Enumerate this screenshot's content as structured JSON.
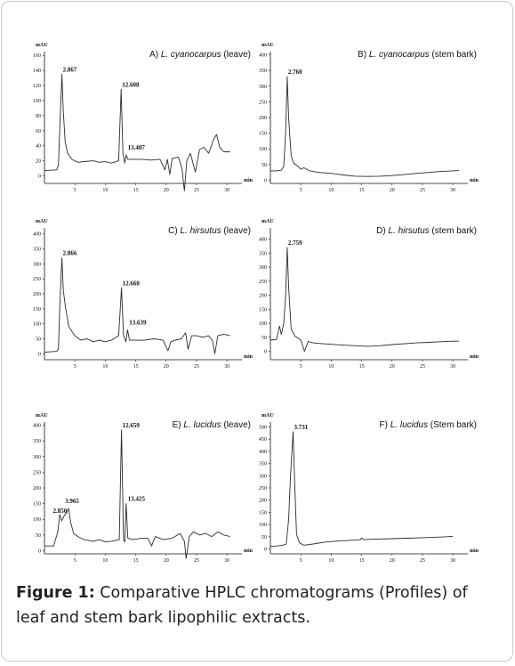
{
  "caption": {
    "label": "Figure 1:",
    "text": "Comparative HPLC chromatograms (Profiles) of leaf and stem bark lipophilic extracts."
  },
  "colors": {
    "trace": "#2b2b2b",
    "axis": "#111111",
    "border": "#c9c9c9"
  },
  "chart_data": [
    {
      "type": "line",
      "id": "A",
      "title_prefix": "A) ",
      "title_species": "L. cyanocarpus",
      "title_suffix": " (leave)",
      "ylabel": "mAU",
      "xlabel": "min",
      "xlim": [
        0,
        31
      ],
      "ylim": [
        -10,
        165
      ],
      "xticks": [
        5,
        10,
        15,
        20,
        25,
        30
      ],
      "yticks": [
        0,
        20,
        40,
        60,
        80,
        100,
        120,
        140,
        160
      ],
      "peaks": [
        {
          "label": "2.867",
          "x": 2.867,
          "y": 135
        },
        {
          "label": "12.608",
          "x": 12.608,
          "y": 115
        },
        {
          "label": "13.407",
          "x": 13.407,
          "y": 28
        }
      ],
      "x": [
        0,
        2,
        2.3,
        2.5,
        2.867,
        3.1,
        3.4,
        3.8,
        4.5,
        5.5,
        6.5,
        8,
        9,
        10,
        11,
        12.2,
        12.608,
        12.9,
        13.2,
        13.407,
        13.7,
        14.5,
        16,
        17.5,
        19,
        19.8,
        20.2,
        20.6,
        21,
        22,
        22.6,
        23,
        23.4,
        24,
        24.8,
        25.5,
        26.2,
        27,
        27.8,
        28.3,
        28.8,
        29.5,
        30.5
      ],
      "y": [
        7,
        8,
        14,
        60,
        135,
        85,
        45,
        30,
        22,
        18,
        19,
        20,
        18,
        19,
        17,
        20,
        115,
        30,
        17,
        28,
        22,
        22,
        22,
        21,
        22,
        8,
        22,
        2,
        23,
        25,
        10,
        -20,
        20,
        30,
        5,
        35,
        38,
        30,
        48,
        55,
        38,
        32,
        32
      ]
    },
    {
      "type": "line",
      "id": "B",
      "title_prefix": "B) ",
      "title_species": "L. cyanocarpus",
      "title_suffix": " (stem bark)",
      "ylabel": "mAU",
      "xlabel": "min",
      "xlim": [
        0,
        31
      ],
      "ylim": [
        -10,
        410
      ],
      "xticks": [
        5,
        10,
        15,
        20,
        25,
        30
      ],
      "yticks": [
        0,
        50,
        100,
        150,
        200,
        250,
        300,
        350,
        400
      ],
      "peaks": [
        {
          "label": "2.760",
          "x": 2.76,
          "y": 330
        }
      ],
      "x": [
        0,
        1,
        1.8,
        2.2,
        2.5,
        2.76,
        3.0,
        3.4,
        3.8,
        4.5,
        5,
        5.5,
        6.5,
        8,
        10,
        12,
        14,
        16,
        18,
        20,
        22,
        24,
        26,
        28,
        30,
        31
      ],
      "y": [
        30,
        30,
        32,
        45,
        150,
        330,
        200,
        80,
        55,
        45,
        35,
        40,
        30,
        25,
        22,
        17,
        13,
        12,
        13,
        15,
        18,
        22,
        25,
        28,
        30,
        31
      ]
    },
    {
      "type": "line",
      "id": "C",
      "title_prefix": "C) ",
      "title_species": "L. hirsutus",
      "title_suffix": " (leave)",
      "ylabel": "mAU",
      "xlabel": "min",
      "xlim": [
        0,
        31
      ],
      "ylim": [
        -20,
        420
      ],
      "xticks": [
        5,
        10,
        15,
        20,
        25,
        30
      ],
      "yticks": [
        0,
        50,
        100,
        150,
        200,
        250,
        300,
        350,
        400
      ],
      "peaks": [
        {
          "label": "2.866",
          "x": 2.866,
          "y": 320
        },
        {
          "label": "12.660",
          "x": 12.66,
          "y": 220
        },
        {
          "label": "13.639",
          "x": 13.639,
          "y": 80
        }
      ],
      "x": [
        0,
        2,
        2.3,
        2.5,
        2.866,
        3.1,
        3.5,
        4,
        5,
        6,
        7,
        8,
        9,
        10,
        11,
        12.2,
        12.66,
        13,
        13.4,
        13.639,
        14,
        15,
        16.5,
        18,
        19.5,
        20.3,
        20.8,
        21.5,
        22.5,
        23.2,
        23.6,
        24.2,
        25,
        26,
        27,
        27.6,
        28,
        28.5,
        29.5,
        30.5
      ],
      "y": [
        5,
        8,
        15,
        150,
        320,
        210,
        150,
        90,
        60,
        45,
        50,
        40,
        45,
        40,
        45,
        60,
        220,
        60,
        40,
        80,
        45,
        45,
        45,
        50,
        45,
        10,
        40,
        45,
        50,
        70,
        15,
        60,
        60,
        55,
        60,
        45,
        0,
        60,
        65,
        60
      ]
    },
    {
      "type": "line",
      "id": "D",
      "title_prefix": "D) ",
      "title_species": "L. hirsutus",
      "title_suffix": " (stem bark)",
      "ylabel": "mAU",
      "xlabel": "min",
      "xlim": [
        0,
        31
      ],
      "ylim": [
        -30,
        440
      ],
      "xticks": [
        5,
        10,
        15,
        20,
        25,
        30
      ],
      "yticks": [
        0,
        50,
        100,
        150,
        200,
        250,
        300,
        350,
        400
      ],
      "peaks": [
        {
          "label": "2.759",
          "x": 2.759,
          "y": 370
        }
      ],
      "x": [
        0,
        1,
        1.5,
        1.8,
        2.2,
        2.5,
        2.759,
        3.0,
        3.4,
        4,
        5,
        5.6,
        6.2,
        7,
        8,
        10,
        12,
        14,
        16,
        18,
        20,
        22,
        24,
        26,
        28,
        30,
        31
      ],
      "y": [
        40,
        42,
        90,
        60,
        100,
        200,
        370,
        230,
        80,
        55,
        40,
        0,
        35,
        30,
        28,
        25,
        22,
        20,
        18,
        20,
        24,
        27,
        30,
        32,
        34,
        36,
        36
      ]
    },
    {
      "type": "line",
      "id": "E",
      "title_prefix": "E) ",
      "title_species": "L. lucidus",
      "title_suffix": " (leave)",
      "ylabel": "mAU",
      "xlabel": "min",
      "xlim": [
        0,
        31
      ],
      "ylim": [
        -10,
        410
      ],
      "xticks": [
        5,
        10,
        15,
        20,
        25,
        30
      ],
      "yticks": [
        0,
        50,
        100,
        150,
        200,
        250,
        300,
        350,
        400
      ],
      "peaks": [
        {
          "label": "2.850",
          "x": 2.85,
          "y": 115
        },
        {
          "label": "3.965",
          "x": 3.965,
          "y": 135
        },
        {
          "label": "12.659",
          "x": 12.659,
          "y": 385
        },
        {
          "label": "13.425",
          "x": 13.425,
          "y": 150
        }
      ],
      "x": [
        0,
        1.5,
        2.2,
        2.5,
        2.85,
        3.2,
        3.6,
        3.965,
        4.3,
        4.8,
        5.5,
        6.5,
        8,
        9,
        10,
        11,
        12.3,
        12.659,
        13,
        13.2,
        13.425,
        13.7,
        14.5,
        16,
        17,
        17.6,
        18.2,
        19.5,
        21,
        22.3,
        23,
        23.3,
        23.8,
        24.5,
        25.5,
        26.5,
        27.5,
        28.5,
        29.5,
        30.5
      ],
      "y": [
        15,
        15,
        60,
        115,
        95,
        110,
        120,
        135,
        90,
        55,
        45,
        35,
        30,
        35,
        28,
        30,
        35,
        385,
        35,
        28,
        150,
        40,
        35,
        40,
        40,
        15,
        45,
        35,
        40,
        55,
        30,
        -25,
        45,
        60,
        50,
        55,
        45,
        60,
        50,
        45
      ]
    },
    {
      "type": "line",
      "id": "F",
      "title_prefix": "F) ",
      "title_species": "L. lucidus",
      "title_suffix": " (Stem bark)",
      "ylabel": "mAU",
      "xlabel": "min",
      "xlim": [
        0,
        31
      ],
      "ylim": [
        -20,
        520
      ],
      "xticks": [
        5,
        10,
        15,
        20,
        25,
        30
      ],
      "yticks": [
        0,
        50,
        100,
        150,
        200,
        250,
        300,
        350,
        400,
        450,
        500
      ],
      "peaks": [
        {
          "label": "3.731",
          "x": 3.731,
          "y": 480
        }
      ],
      "x": [
        0,
        1,
        2,
        2.6,
        3.0,
        3.3,
        3.731,
        4.0,
        4.3,
        4.8,
        5.5,
        7,
        9,
        11,
        13,
        14.8,
        15,
        15.3,
        17,
        20,
        22.5,
        25,
        27,
        29,
        30
      ],
      "y": [
        10,
        12,
        15,
        20,
        120,
        300,
        480,
        260,
        60,
        25,
        15,
        20,
        28,
        32,
        35,
        38,
        45,
        38,
        40,
        42,
        44,
        46,
        48,
        50,
        52
      ]
    }
  ]
}
